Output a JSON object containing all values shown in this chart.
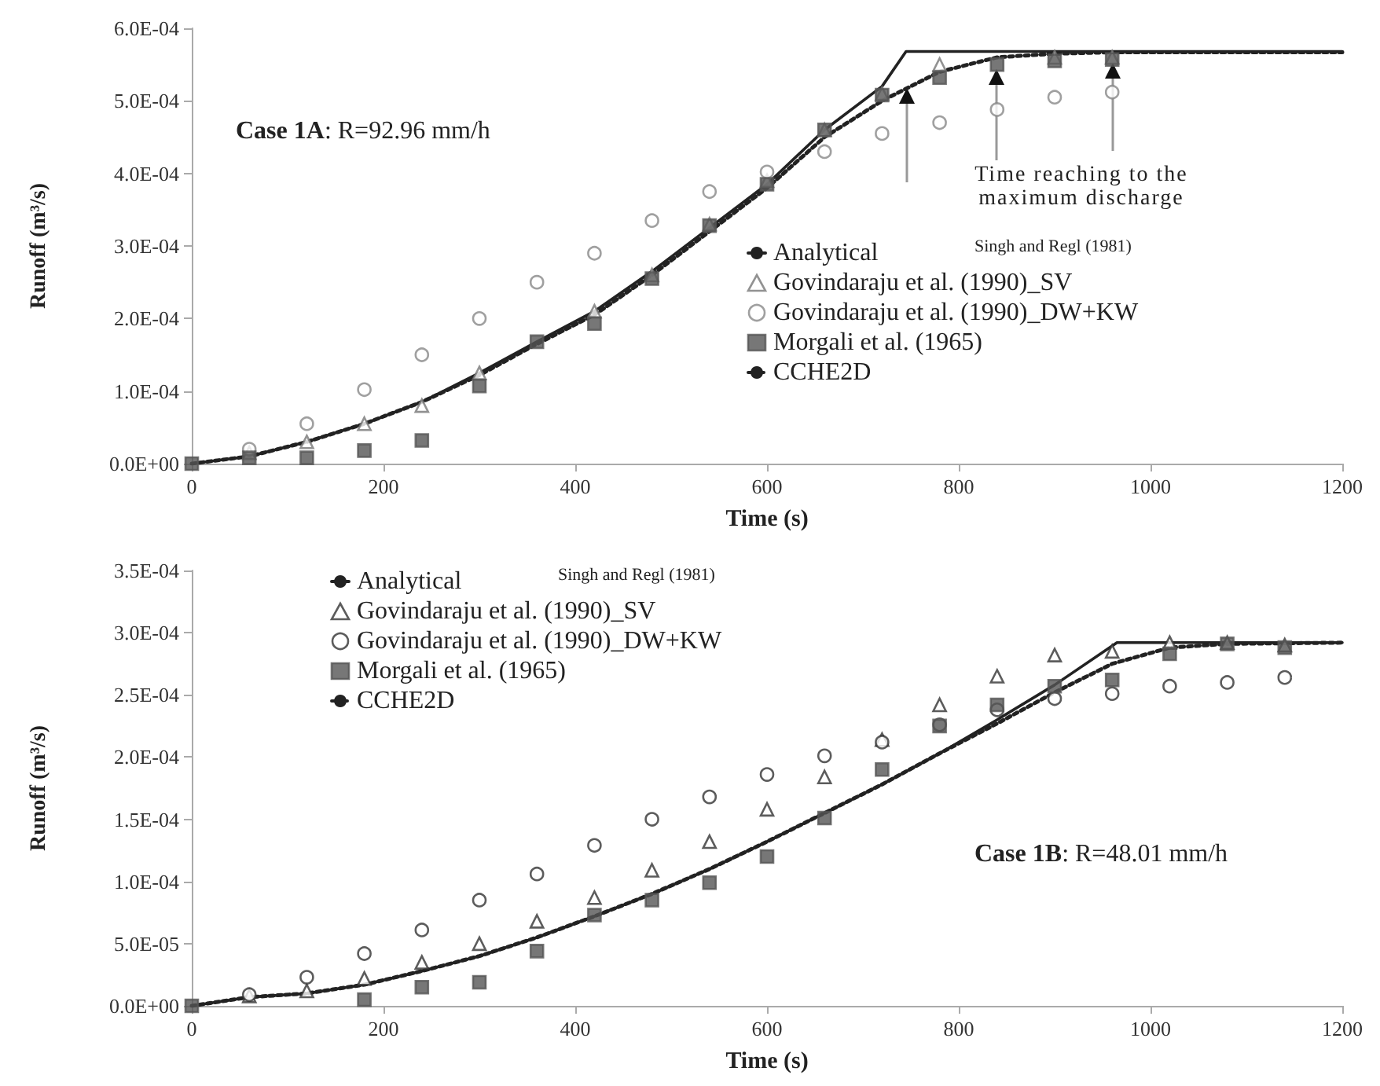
{
  "chart_data": [
    {
      "type": "line",
      "xlabel": "Time (s)",
      "ylabel": "Runoff (m³/s)",
      "xlim": [
        0,
        1200
      ],
      "xticks": [
        0,
        200,
        400,
        600,
        800,
        1000,
        1200
      ],
      "ylim": [
        0,
        0.0006
      ],
      "yticks": [
        {
          "value": 0,
          "label": "0.0E+00"
        },
        {
          "value": 0.0001,
          "label": "1.0E-04"
        },
        {
          "value": 0.0002,
          "label": "2.0E-04"
        },
        {
          "value": 0.0003,
          "label": "3.0E-04"
        },
        {
          "value": 0.0004,
          "label": "4.0E-04"
        },
        {
          "value": 0.0005,
          "label": "5.0E-04"
        },
        {
          "value": 0.0006,
          "label": "6.0E-04"
        }
      ],
      "grid": false,
      "legend": "right",
      "annotations": [
        "Case 1A: R=92.96 mm/h",
        "Singh and Regl (1981)",
        "Time reaching to the maximum discharge"
      ],
      "series": [
        {
          "name": "Analytical",
          "color": "#222222",
          "marker": "none",
          "line_style": "solid",
          "x": [
            0,
            60,
            120,
            180,
            240,
            300,
            360,
            420,
            480,
            540,
            600,
            660,
            720,
            745,
            1200
          ],
          "values": [
            0,
            1e-05,
            3e-05,
            5.5e-05,
            8.5e-05,
            0.000125,
            0.000168,
            0.00021,
            0.000265,
            0.000325,
            0.000385,
            0.00046,
            0.00052,
            0.000568,
            0.000568
          ]
        },
        {
          "name": "Govindaraju et al. (1990)_SV",
          "type": "scatter",
          "color": "#777777",
          "marker": "triangle",
          "x": [
            60,
            120,
            180,
            240,
            300,
            420,
            480,
            540,
            600,
            660,
            720,
            780,
            840,
            900,
            960
          ],
          "values": [
            1.5e-05,
            3e-05,
            5.5e-05,
            8e-05,
            0.000125,
            0.00021,
            0.00026,
            0.00033,
            0.00039,
            0.00046,
            0.00051,
            0.00055,
            null,
            0.00056,
            0.00056
          ]
        },
        {
          "name": "Govindaraju et al. (1990)_DW+KW",
          "type": "scatter",
          "color": "#888888",
          "marker": "circle",
          "x": [
            60,
            120,
            180,
            240,
            300,
            360,
            420,
            480,
            540,
            600,
            660,
            720,
            780,
            840,
            900,
            960
          ],
          "values": [
            2e-05,
            5.5e-05,
            0.000102,
            0.00015,
            0.0002,
            0.00025,
            0.00029,
            0.000335,
            0.000375,
            0.000402,
            0.00043,
            0.000455,
            0.00047,
            0.000488,
            0.000505,
            0.000512
          ]
        },
        {
          "name": "Morgali et al. (1965)",
          "type": "scatter",
          "color": "#555555",
          "marker": "square",
          "x": [
            0,
            60,
            120,
            180,
            240,
            300,
            360,
            420,
            480,
            540,
            600,
            660,
            720,
            780,
            840,
            900,
            960
          ],
          "values": [
            0,
            8e-06,
            8e-06,
            1.8e-05,
            3.2e-05,
            0.000107,
            0.000168,
            0.000193,
            0.000255,
            0.000328,
            0.000385,
            0.00046,
            0.000508,
            0.000532,
            0.00055,
            0.000555,
            0.000557
          ]
        },
        {
          "name": "CCHE2D",
          "color": "#222222",
          "marker": "none",
          "line_style": "dotted",
          "x": [
            0,
            60,
            120,
            180,
            240,
            300,
            360,
            420,
            480,
            540,
            600,
            660,
            720,
            780,
            840,
            900,
            960,
            1200
          ],
          "values": [
            0,
            1e-05,
            3e-05,
            5.5e-05,
            8.5e-05,
            0.000122,
            0.000165,
            0.000205,
            0.00026,
            0.00032,
            0.00038,
            0.00045,
            0.0005,
            0.00054,
            0.00056,
            0.000565,
            0.000567,
            0.000567
          ]
        }
      ]
    },
    {
      "type": "line",
      "xlabel": "Time (s)",
      "ylabel": "Runoff (m³/s)",
      "xlim": [
        0,
        1200
      ],
      "xticks": [
        0,
        200,
        400,
        600,
        800,
        1000,
        1200
      ],
      "ylim": [
        0,
        0.00035
      ],
      "yticks": [
        {
          "value": 0,
          "label": "0.0E+00"
        },
        {
          "value": 5e-05,
          "label": "5.0E-05"
        },
        {
          "value": 0.0001,
          "label": "1.0E-04"
        },
        {
          "value": 0.00015,
          "label": "1.5E-04"
        },
        {
          "value": 0.0002,
          "label": "2.0E-04"
        },
        {
          "value": 0.00025,
          "label": "2.5E-04"
        },
        {
          "value": 0.0003,
          "label": "3.0E-04"
        },
        {
          "value": 0.00035,
          "label": "3.5E-04"
        }
      ],
      "grid": false,
      "legend": "top left",
      "annotations": [
        "Case 1B: R=48.01 mm/h",
        "Singh and Regl (1981)"
      ],
      "series": [
        {
          "name": "Analytical",
          "color": "#222222",
          "marker": "none",
          "line_style": "solid",
          "x": [
            0,
            60,
            120,
            180,
            240,
            300,
            360,
            420,
            480,
            540,
            600,
            660,
            720,
            780,
            840,
            900,
            965,
            1200
          ],
          "values": [
            0,
            7e-06,
            1e-05,
            1.7e-05,
            2.8e-05,
            4e-05,
            5.5e-05,
            7.2e-05,
            9e-05,
            0.00011,
            0.000132,
            0.000155,
            0.000178,
            0.000203,
            0.00023,
            0.000258,
            0.000292,
            0.000292
          ]
        },
        {
          "name": "Govindaraju et al. (1990)_SV",
          "type": "scatter",
          "color": "#333333",
          "marker": "triangle",
          "x": [
            60,
            120,
            180,
            240,
            300,
            360,
            420,
            480,
            540,
            600,
            660,
            720,
            780,
            840,
            900,
            960,
            1020,
            1080,
            1140
          ],
          "values": [
            8e-06,
            1.2e-05,
            2.2e-05,
            3.5e-05,
            5e-05,
            6.8e-05,
            8.7e-05,
            0.000109,
            0.000132,
            0.000158,
            0.000184,
            0.000214,
            0.000242,
            0.000265,
            0.000282,
            0.000285,
            0.000292,
            0.000292,
            0.00029
          ]
        },
        {
          "name": "Govindaraju et al. (1990)_DW+KW",
          "type": "scatter",
          "color": "#333333",
          "marker": "circle",
          "x": [
            60,
            120,
            180,
            240,
            300,
            360,
            420,
            480,
            540,
            600,
            660,
            720,
            780,
            840,
            900,
            960,
            1020,
            1080,
            1140
          ],
          "values": [
            9e-06,
            2.3e-05,
            4.2e-05,
            6.1e-05,
            8.5e-05,
            0.000106,
            0.000129,
            0.00015,
            0.000168,
            0.000186,
            0.000201,
            0.000212,
            0.000226,
            0.000238,
            0.000247,
            0.000251,
            0.000257,
            0.00026,
            0.000264
          ]
        },
        {
          "name": "Morgali et al. (1965)",
          "type": "scatter",
          "color": "#555555",
          "marker": "square",
          "x": [
            0,
            180,
            240,
            300,
            360,
            420,
            480,
            540,
            600,
            660,
            720,
            780,
            840,
            900,
            960,
            1020,
            1080,
            1140
          ],
          "values": [
            0,
            5e-06,
            1.5e-05,
            1.9e-05,
            4.4e-05,
            7.3e-05,
            8.5e-05,
            9.9e-05,
            0.00012,
            0.000151,
            0.00019,
            0.000225,
            0.000242,
            0.000257,
            0.000262,
            0.000283,
            0.000291,
            0.000288
          ]
        },
        {
          "name": "CCHE2D",
          "color": "#222222",
          "marker": "none",
          "line_style": "dotted",
          "x": [
            0,
            60,
            120,
            180,
            240,
            300,
            360,
            420,
            480,
            540,
            600,
            660,
            720,
            780,
            840,
            900,
            960,
            1020,
            1080,
            1200
          ],
          "values": [
            0,
            7e-06,
            1e-05,
            1.7e-05,
            2.8e-05,
            4e-05,
            5.5e-05,
            7.2e-05,
            9e-05,
            0.00011,
            0.000132,
            0.000155,
            0.000178,
            0.000203,
            0.000227,
            0.000252,
            0.000275,
            0.000288,
            0.000291,
            0.000292
          ]
        }
      ]
    }
  ]
}
